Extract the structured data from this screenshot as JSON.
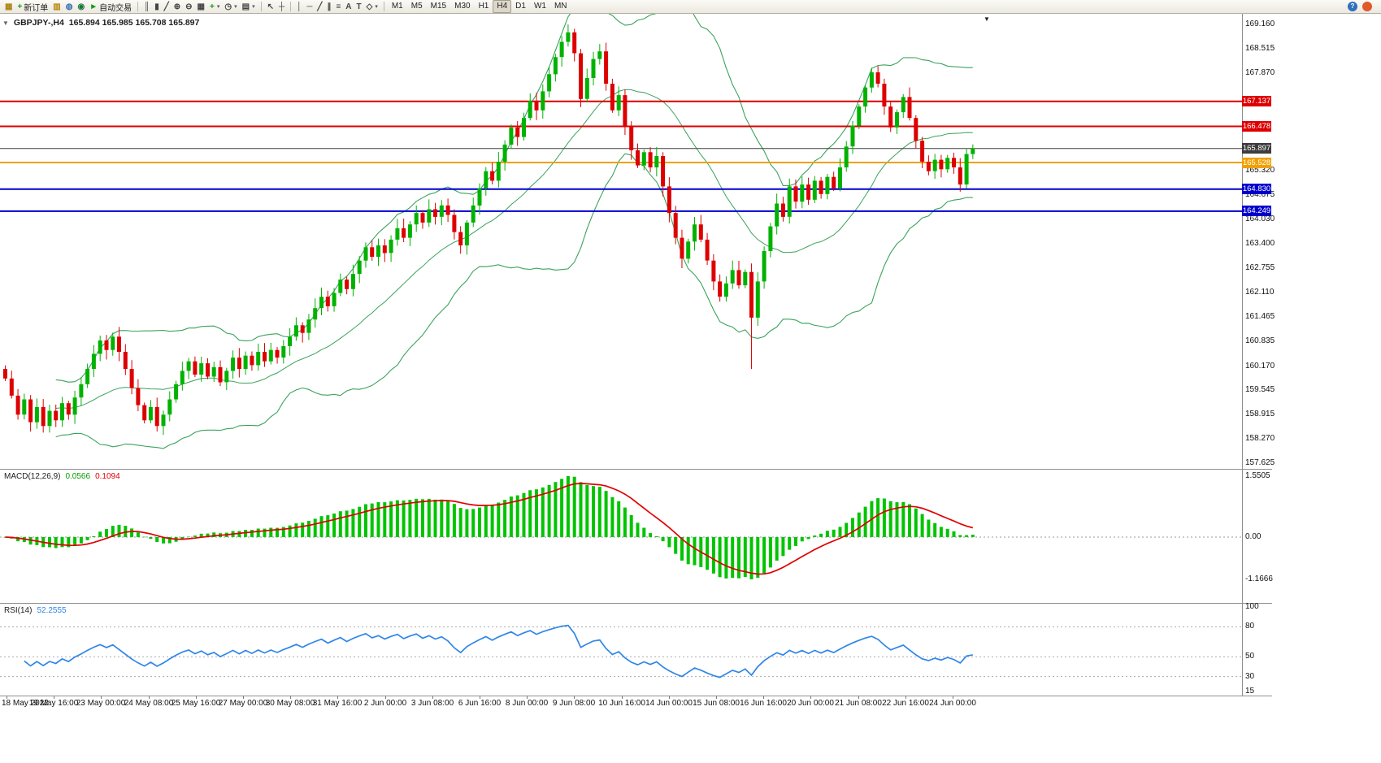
{
  "icons": {
    "one_click": "▼",
    "end_marker": "▼",
    "caret": "▾"
  },
  "toolbar": {
    "left_groups": [
      [
        {
          "name": "new-chart-button",
          "glyph": "▦",
          "color": "#a98514"
        },
        {
          "name": "new-order-button",
          "glyph": "+",
          "color": "#0f9d0f",
          "label": "新订单"
        },
        {
          "name": "market-depth-button",
          "glyph": "▥",
          "color": "#b8860b"
        },
        {
          "name": "mql5-community-button",
          "glyph": "◍",
          "color": "#3b6fb5"
        },
        {
          "name": "strategy-tester-button",
          "glyph": "◉",
          "color": "#18793a"
        },
        {
          "name": "autotrading-button",
          "glyph": "►",
          "color": "#0f9d0f",
          "label": "自动交易"
        }
      ],
      [
        {
          "name": "bar-chart-button",
          "glyph": "║",
          "color": "#444"
        },
        {
          "name": "candlestick-chart-button",
          "glyph": "▮",
          "color": "#444"
        },
        {
          "name": "line-chart-button",
          "glyph": "╱",
          "color": "#444"
        },
        {
          "name": "zoom-in-button",
          "glyph": "⊕",
          "color": "#444"
        },
        {
          "name": "zoom-out-button",
          "glyph": "⊖",
          "color": "#444"
        },
        {
          "name": "tile-windows-button",
          "glyph": "▦",
          "color": "#444"
        },
        {
          "name": "indicators-button",
          "glyph": "+",
          "color": "#0f9d0f",
          "caret": true
        },
        {
          "name": "periods-button",
          "glyph": "◷",
          "color": "#444",
          "caret": true
        },
        {
          "name": "templates-button",
          "glyph": "▤",
          "color": "#444",
          "caret": true
        }
      ],
      [
        {
          "name": "cursor-button",
          "glyph": "↖",
          "color": "#444"
        },
        {
          "name": "crosshair-button",
          "glyph": "┼",
          "color": "#444"
        }
      ],
      [
        {
          "name": "vertical-line-button",
          "glyph": "│",
          "color": "#444"
        },
        {
          "name": "horizontal-line-button",
          "glyph": "─",
          "color": "#444"
        },
        {
          "name": "trendline-button",
          "glyph": "╱",
          "color": "#444"
        },
        {
          "name": "channel-button",
          "glyph": "∥",
          "color": "#444"
        },
        {
          "name": "fibonacci-button",
          "glyph": "≡",
          "color": "#444"
        },
        {
          "name": "text-button",
          "glyph": "A",
          "color": "#444"
        },
        {
          "name": "label-button",
          "glyph": "T",
          "color": "#444"
        },
        {
          "name": "shapes-button",
          "glyph": "◇",
          "color": "#444",
          "caret": true
        }
      ]
    ],
    "timeframes": {
      "items": [
        "M1",
        "M5",
        "M15",
        "M30",
        "H1",
        "H4",
        "D1",
        "W1",
        "MN"
      ],
      "active": "H4"
    },
    "right_icons": [
      {
        "name": "search-icon",
        "glyph": "?",
        "bg": "#2f6fbf"
      },
      {
        "name": "notification-icon",
        "glyph": "",
        "bg": "#e0592b"
      }
    ]
  },
  "chart_data": {
    "type": "candlestick",
    "title": "GBPJPY-,H4",
    "ohlc_display": "165.894 165.985 165.708 165.897",
    "colors": {
      "up": "#00b200",
      "down": "#dd0000",
      "band": "#3aa35c",
      "macd_hist": "#00c400",
      "macd_signal": "#e00000",
      "rsi": "#2e86e8",
      "bid": "#3c3c3c"
    },
    "candles": {
      "first_open": 160.1,
      "closes": [
        159.85,
        159.4,
        158.9,
        159.3,
        158.7,
        159.1,
        158.6,
        159.0,
        158.75,
        159.2,
        158.9,
        159.35,
        159.7,
        160.1,
        160.5,
        160.85,
        160.6,
        160.95,
        160.55,
        160.1,
        159.6,
        159.15,
        158.75,
        159.1,
        158.6,
        158.9,
        159.3,
        159.7,
        160.05,
        160.3,
        159.95,
        160.25,
        159.9,
        160.15,
        159.75,
        160.05,
        160.4,
        160.1,
        160.45,
        160.2,
        160.55,
        160.3,
        160.6,
        160.4,
        160.7,
        160.95,
        161.25,
        161.05,
        161.4,
        161.7,
        162.0,
        161.75,
        162.1,
        162.45,
        162.2,
        162.6,
        162.95,
        163.3,
        163.05,
        163.35,
        163.15,
        163.5,
        163.8,
        163.55,
        163.9,
        164.2,
        163.95,
        164.3,
        164.1,
        164.4,
        164.15,
        163.7,
        163.35,
        163.95,
        164.4,
        164.85,
        165.3,
        165.05,
        165.55,
        166.0,
        166.45,
        166.2,
        166.7,
        167.15,
        166.9,
        167.4,
        167.85,
        168.3,
        168.7,
        168.95,
        168.4,
        167.2,
        167.75,
        168.25,
        168.45,
        167.6,
        166.9,
        167.3,
        166.5,
        165.85,
        165.45,
        165.8,
        165.4,
        165.7,
        164.9,
        164.2,
        163.55,
        163.0,
        163.45,
        163.9,
        163.5,
        162.95,
        162.4,
        162.0,
        162.35,
        162.7,
        162.3,
        162.65,
        161.45,
        162.4,
        163.2,
        163.85,
        164.45,
        164.1,
        164.9,
        164.5,
        164.95,
        164.55,
        165.05,
        164.7,
        165.15,
        164.85,
        165.4,
        165.95,
        166.5,
        167.0,
        167.5,
        167.9,
        167.6,
        167.0,
        166.45,
        166.85,
        167.25,
        166.7,
        166.1,
        165.55,
        165.3,
        165.6,
        165.35,
        165.65,
        165.4,
        164.95,
        165.75,
        165.9
      ],
      "wick_overrides": [
        {
          "i": 89,
          "high": 169.16
        },
        {
          "i": 118,
          "low": 160.1
        },
        {
          "i": 137,
          "high": 168.02
        }
      ]
    },
    "levels": [
      {
        "price": 167.137,
        "label": "167.137",
        "color": "#dd0000",
        "width": 2
      },
      {
        "price": 166.478,
        "label": "166.478",
        "color": "#dd0000",
        "width": 2
      },
      {
        "price": 165.897,
        "label": "165.897",
        "color": "#3c3c3c",
        "width": 1,
        "bid": true
      },
      {
        "price": 165.528,
        "label": "165.528",
        "color": "#f0a000",
        "width": 2
      },
      {
        "price": 164.83,
        "label": "164.830",
        "color": "#0000cc",
        "width": 2
      },
      {
        "price": 164.249,
        "label": "164.249",
        "color": "#0000cc",
        "width": 2
      }
    ],
    "price_axis_labels": [
      {
        "v": 169.16,
        "t": "169.160"
      },
      {
        "v": 168.515,
        "t": "168.515"
      },
      {
        "v": 167.87,
        "t": "167.870"
      },
      {
        "v": 165.32,
        "t": "165.320"
      },
      {
        "v": 164.675,
        "t": "164.675"
      },
      {
        "v": 164.03,
        "t": "164.030"
      },
      {
        "v": 163.4,
        "t": "163.400"
      },
      {
        "v": 162.755,
        "t": "162.755"
      },
      {
        "v": 162.11,
        "t": "162.110"
      },
      {
        "v": 161.465,
        "t": "161.465"
      },
      {
        "v": 160.835,
        "t": "160.835"
      },
      {
        "v": 160.17,
        "t": "160.170"
      },
      {
        "v": 159.545,
        "t": "159.545"
      },
      {
        "v": 158.915,
        "t": "158.915"
      },
      {
        "v": 158.27,
        "t": "158.270"
      },
      {
        "v": 157.625,
        "t": "157.625"
      }
    ],
    "indicators": {
      "bollinger": {
        "period": 20,
        "deviation": 2
      },
      "macd": {
        "label": "MACD(12,26,9)",
        "values": [
          "0.0566",
          "0.1094"
        ],
        "axis_labels": [
          "1.5505",
          "0.00",
          "-1.1666"
        ]
      },
      "rsi": {
        "label": "RSI(14)",
        "value": "52.2555",
        "axis_labels": [
          {
            "v": 100,
            "t": "100"
          },
          {
            "v": 80,
            "t": "80"
          },
          {
            "v": 50,
            "t": "50"
          },
          {
            "v": 30,
            "t": "30"
          },
          {
            "v": 15,
            "t": "15"
          }
        ],
        "levels": [
          80,
          50,
          30
        ],
        "scale_min": 15,
        "scale_max": 100
      }
    },
    "time_axis": [
      "18 May 2022",
      "19 May 16:00",
      "23 May 00:00",
      "24 May 08:00",
      "25 May 16:00",
      "27 May 00:00",
      "30 May 08:00",
      "31 May 16:00",
      "2 Jun 00:00",
      "3 Jun 08:00",
      "6 Jun 16:00",
      "8 Jun 00:00",
      "9 Jun 08:00",
      "10 Jun 16:00",
      "14 Jun 00:00",
      "15 Jun 08:00",
      "16 Jun 16:00",
      "20 Jun 00:00",
      "21 Jun 08:00",
      "22 Jun 16:00",
      "24 Jun 00:00"
    ]
  }
}
